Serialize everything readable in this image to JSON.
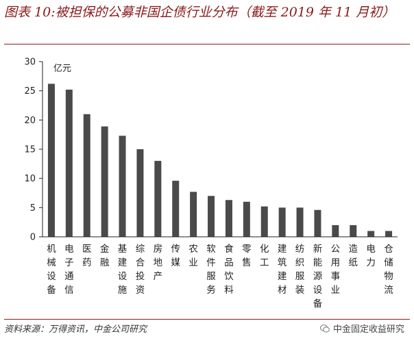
{
  "figure": {
    "title": "图表 10:被担保的公募非国企债行业分布（截至 2019 年 11 月初）",
    "source": "资料来源：万得资讯，中金公司研究",
    "watermark": "中金固定收益研究",
    "watermark_icon": "wechat-icon"
  },
  "chart_data": {
    "type": "bar",
    "unit_label": "亿元",
    "ylim": [
      0,
      30
    ],
    "yticks": [
      0,
      5,
      10,
      15,
      20,
      25,
      30
    ],
    "grid": false,
    "bar_color": "#4a4a4a",
    "categories": [
      "机械设备",
      "电子通信",
      "医药",
      "金融",
      "基建设施",
      "综合投资",
      "房地产",
      "传媒",
      "农业",
      "软件服务",
      "食品饮料",
      "零售",
      "化工",
      "建筑建材",
      "纺织服装",
      "新能源设备",
      "公用事业",
      "造纸",
      "电力",
      "仓储物流"
    ],
    "values": [
      26.2,
      25.2,
      21.0,
      18.9,
      17.3,
      15.0,
      13.0,
      9.6,
      7.7,
      7.0,
      6.3,
      6.0,
      5.2,
      5.0,
      5.0,
      4.6,
      2.0,
      2.0,
      1.0,
      1.0
    ]
  }
}
